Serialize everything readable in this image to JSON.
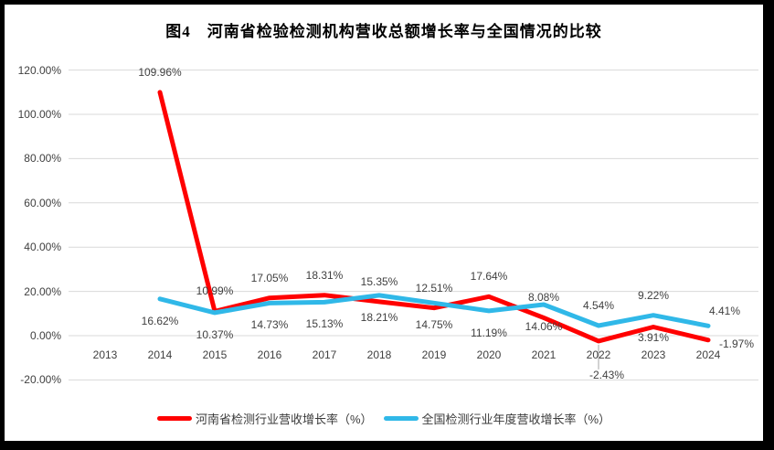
{
  "title": "图4　河南省检验检测机构营收总额增长率与全国情况的比较",
  "chart_data": {
    "type": "line",
    "categories": [
      "2013",
      "2014",
      "2015",
      "2016",
      "2017",
      "2018",
      "2019",
      "2020",
      "2021",
      "2022",
      "2023",
      "2024"
    ],
    "series": [
      {
        "name": "河南省检测行业营收增长率（%）",
        "color": "#FF0000",
        "values": [
          null,
          109.96,
          10.99,
          17.05,
          18.31,
          15.35,
          12.51,
          17.64,
          8.08,
          -2.43,
          3.91,
          -1.97
        ]
      },
      {
        "name": "全国检测行业年度营收增长率（%）",
        "color": "#30B8E8",
        "values": [
          null,
          16.62,
          10.37,
          14.73,
          15.13,
          18.21,
          14.75,
          11.19,
          14.06,
          4.54,
          9.22,
          4.41
        ]
      }
    ],
    "ylim": [
      -20,
      120
    ],
    "yticks": [
      {
        "value": 120,
        "label": "120.00%"
      },
      {
        "value": 100,
        "label": "100.00%"
      },
      {
        "value": 80,
        "label": "80.00%"
      },
      {
        "value": 60,
        "label": "60.00%"
      },
      {
        "value": 40,
        "label": "40.00%"
      },
      {
        "value": 20,
        "label": "20.00%"
      },
      {
        "value": 0,
        "label": "0.00%"
      },
      {
        "value": -20,
        "label": "-20.00%"
      }
    ],
    "grid": true,
    "legend_position": "bottom",
    "data_label_format": "0.00%"
  },
  "style": {
    "grid_color": "#D9D9D9",
    "label_color": "#404040",
    "leader_color": "#A6A6A6",
    "frame_color": "#000000",
    "background": "#FFFFFF"
  }
}
